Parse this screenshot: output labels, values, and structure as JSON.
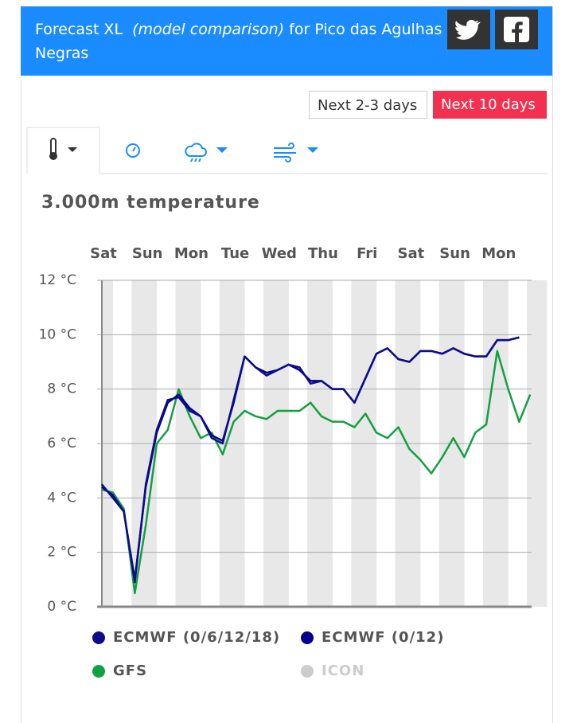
{
  "header": {
    "title": "Forecast XL",
    "subtitle": "(model comparison)",
    "location": "for Pico das Agulhas Negras"
  },
  "buttons": [
    "Next 2-3 days",
    "Next 10 days"
  ],
  "chart_data": {
    "type": "line",
    "title": "3.000m temperature",
    "categories": [
      "Sat",
      null,
      null,
      null,
      "Sun",
      null,
      null,
      null,
      "Mon",
      null,
      null,
      null,
      "Tue",
      null,
      null,
      null,
      "Wed",
      null,
      null,
      null,
      "Thu",
      null,
      null,
      null,
      "Fri",
      null,
      null,
      null,
      "Sat",
      null,
      null,
      null,
      "Sun",
      null,
      null,
      null,
      "Mon",
      null,
      null,
      null
    ],
    "series": [
      {
        "name": "ECMWF (0/6/12/18)",
        "color": "#0d0d8c",
        "values": [
          4.5,
          4.0,
          3.5,
          0.9,
          4.5,
          6.5,
          7.6,
          7.7,
          7.2,
          7.0,
          6.2,
          6.0,
          7.6,
          9.2,
          8.8,
          8.5,
          8.7,
          8.9,
          8.8,
          8.2,
          8.3,
          8.0,
          8.0,
          7.5,
          8.4,
          9.3,
          9.5,
          9.1,
          9.0,
          9.4,
          9.4,
          9.3,
          9.5,
          9.3,
          9.2,
          9.2,
          9.8,
          9.8,
          9.9,
          null
        ]
      },
      {
        "name": "ECMWF (0/12)",
        "color": "#00008b",
        "values": [
          4.4,
          4.1,
          3.5,
          1.0,
          4.4,
          6.4,
          7.5,
          7.8,
          7.3,
          7.0,
          6.3,
          6.1,
          7.5,
          9.2,
          8.8,
          8.6,
          8.7,
          8.9,
          8.7,
          8.3,
          8.3,
          8.0,
          8.0,
          7.5,
          8.4,
          9.3,
          9.5,
          9.1,
          9.0,
          9.4,
          9.4,
          9.3,
          9.5,
          9.3,
          9.2,
          9.2,
          9.8,
          9.8,
          9.9,
          null
        ]
      },
      {
        "name": "GFS",
        "color": "#13a03f",
        "values": [
          4.3,
          4.2,
          3.6,
          0.5,
          3.0,
          6.0,
          6.5,
          8.0,
          7.0,
          6.2,
          6.4,
          5.6,
          6.8,
          7.2,
          7.0,
          6.9,
          7.2,
          7.2,
          7.2,
          7.5,
          7.0,
          6.8,
          6.8,
          6.6,
          7.1,
          6.4,
          6.2,
          6.6,
          5.8,
          5.4,
          4.9,
          5.5,
          6.2,
          5.5,
          6.4,
          6.7,
          9.4,
          8.0,
          6.8,
          7.8
        ]
      },
      {
        "name": "ICON",
        "color": "#cccccc",
        "values": [
          null,
          null,
          null,
          null,
          null,
          null,
          null,
          null,
          null,
          null,
          null,
          null,
          null,
          null,
          null,
          null,
          null,
          null,
          null,
          null,
          null,
          null,
          null,
          null,
          null,
          null,
          null,
          null,
          null,
          null,
          null,
          null,
          null,
          null,
          null,
          null,
          null,
          null,
          null,
          null
        ]
      }
    ],
    "ylim": [
      0,
      12
    ],
    "yticks": [
      {
        "value": 0,
        "label": "0 °C"
      },
      {
        "value": 2,
        "label": "2 °C"
      },
      {
        "value": 4,
        "label": "4 °C"
      },
      {
        "value": 6,
        "label": "6 °C"
      },
      {
        "value": 8,
        "label": "8 °C"
      },
      {
        "value": 10,
        "label": "10 °C"
      },
      {
        "value": 12,
        "label": "12 °C"
      }
    ],
    "grid": true
  }
}
